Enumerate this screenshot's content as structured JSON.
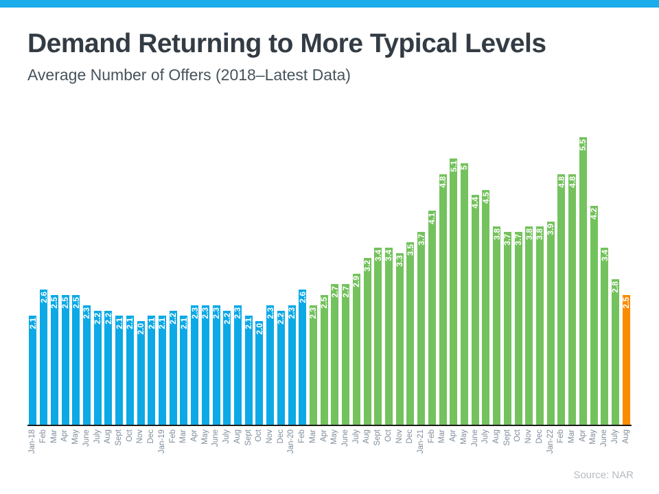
{
  "chart_data": {
    "type": "bar",
    "title": "Demand Returning to More Typical Levels",
    "subtitle": "Average Number of Offers (2018–Latest Data)",
    "source": "Source: NAR",
    "xlabel": "",
    "ylabel": "",
    "ylim": [
      0,
      5.5
    ],
    "grid": false,
    "legend": false,
    "accent_bar_color": "#1BACEC",
    "title_color": "#333C44",
    "subtitle_color": "#46535C",
    "axis_line_color": "#1A1A1A",
    "value_label_color": "#FFFFFF",
    "tick_label_color": "#7D8B99",
    "source_color": "#B5BBC0",
    "categories": [
      "Jan-18",
      "Feb",
      "Mar",
      "Apr",
      "May",
      "June",
      "July",
      "Aug",
      "Sept",
      "Oct",
      "Nov",
      "Dec",
      "Jan-19",
      "Feb",
      "Mar",
      "Apr",
      "May",
      "June",
      "July",
      "Aug",
      "Sept",
      "Oct",
      "Nov",
      "Dec",
      "Jan-20",
      "Feb",
      "Mar",
      "Apr",
      "May",
      "June",
      "July",
      "Aug",
      "Sept",
      "Oct",
      "Nov",
      "Dec",
      "Jan-21",
      "Feb",
      "Mar",
      "Apr",
      "May",
      "June",
      "July",
      "Aug",
      "Sept",
      "Oct",
      "Nov",
      "Dec",
      "Jan-22",
      "Feb",
      "Mar",
      "Apr",
      "May",
      "June",
      "July",
      "Aug"
    ],
    "values": [
      2.1,
      2.6,
      2.5,
      2.5,
      2.5,
      2.3,
      2.2,
      2.2,
      2.1,
      2.1,
      2.0,
      2.1,
      2.1,
      2.2,
      2.1,
      2.3,
      2.3,
      2.3,
      2.2,
      2.3,
      2.1,
      2.0,
      2.3,
      2.2,
      2.3,
      2.6,
      2.3,
      2.5,
      2.7,
      2.7,
      2.9,
      3.2,
      3.4,
      3.4,
      3.3,
      3.5,
      3.7,
      4.1,
      4.8,
      5.1,
      5,
      4.4,
      4.5,
      3.8,
      3.7,
      3.7,
      3.8,
      3.8,
      3.9,
      4.8,
      4.8,
      5.5,
      4.2,
      3.4,
      2.8,
      2.5
    ],
    "display_values": [
      "2.1",
      "2.6",
      "2.5",
      "2.5",
      "2.5",
      "2.3",
      "2.2",
      "2.2",
      "2.1",
      "2.1",
      "2.0",
      "2.1",
      "2.1",
      "2.2",
      "2.1",
      "2.3",
      "2.3",
      "2.3",
      "2.2",
      "2.3",
      "2.1",
      "2.0",
      "2.3",
      "2.2",
      "2.3",
      "2.6",
      "2.3",
      "2.5",
      "2.7",
      "2.7",
      "2.9",
      "3.2",
      "3.4",
      "3.4",
      "3.3",
      "3.5",
      "3.7",
      "4.1",
      "4.8",
      "5.1",
      "5",
      "4.4",
      "4.5",
      "3.8",
      "3.7",
      "3.7",
      "3.8",
      "3.8",
      "3.9",
      "4.8",
      "4.8",
      "5.5",
      "4.2",
      "3.4",
      "2.8",
      "2.5"
    ],
    "segments": [
      {
        "name": "Jan 2018 – Feb 2020",
        "color": "#0CA9E6",
        "start": 0,
        "end": 25
      },
      {
        "name": "Mar 2020 – Jul 2022",
        "color": "#74C25D",
        "start": 26,
        "end": 54
      },
      {
        "name": "Aug 2022 latest",
        "color": "#FB8B00",
        "start": 55,
        "end": 55
      }
    ]
  }
}
